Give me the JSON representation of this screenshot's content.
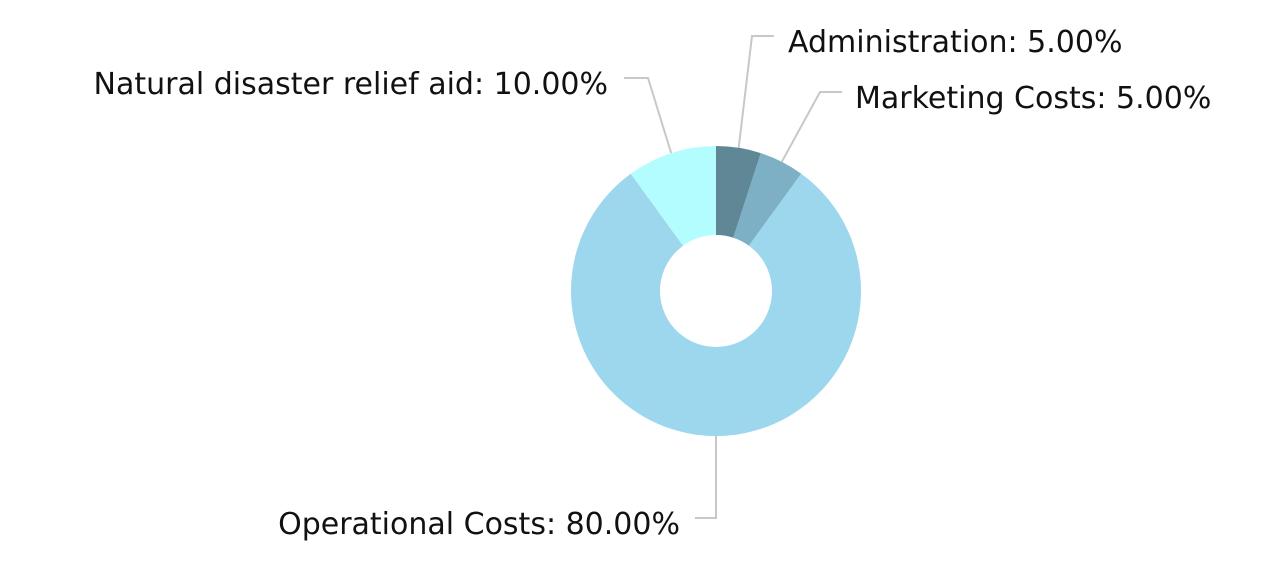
{
  "chart_data": {
    "type": "pie",
    "donut": true,
    "slices": [
      {
        "label": "Administration",
        "value": 5.0,
        "display": "Administration: 5.00%",
        "color": "#5f8796"
      },
      {
        "label": "Marketing Costs",
        "value": 5.0,
        "display": "Marketing Costs: 5.00%",
        "color": "#7db0c4"
      },
      {
        "label": "Operational Costs",
        "value": 80.0,
        "display": "Operational Costs: 80.00%",
        "color": "#9dd7ee"
      },
      {
        "label": "Natural disaster relief aid",
        "value": 10.0,
        "display": "Natural disaster relief aid: 10.00%",
        "color": "#b4fdff"
      }
    ],
    "start": "top",
    "direction": "clockwise",
    "legend": "none",
    "leader_line_color": "#c8c8c8"
  }
}
